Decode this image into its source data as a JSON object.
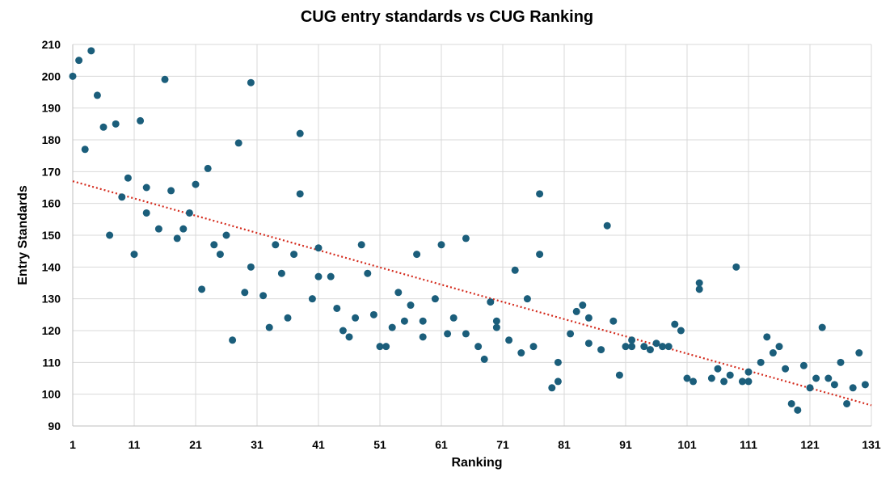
{
  "chart_data": {
    "type": "scatter",
    "title": "CUG entry standards vs CUG Ranking",
    "xlabel": "Ranking",
    "ylabel": "Entry Standards",
    "xlim": [
      1,
      131
    ],
    "ylim": [
      90,
      210
    ],
    "x_ticks": [
      1,
      11,
      21,
      31,
      41,
      51,
      61,
      71,
      81,
      91,
      101,
      111,
      121,
      131
    ],
    "y_ticks": [
      90,
      100,
      110,
      120,
      130,
      140,
      150,
      160,
      170,
      180,
      190,
      200,
      210
    ],
    "grid": true,
    "legend": "none",
    "marker_color": "#1b5e7b",
    "trendline": {
      "type": "linear",
      "style": "dotted",
      "color": "#d42a1c",
      "start": [
        1,
        167
      ],
      "end": [
        131,
        96.5
      ]
    },
    "points": [
      [
        1,
        200
      ],
      [
        2,
        205
      ],
      [
        3,
        177
      ],
      [
        4,
        208
      ],
      [
        5,
        194
      ],
      [
        6,
        184
      ],
      [
        7,
        150
      ],
      [
        8,
        185
      ],
      [
        9,
        162
      ],
      [
        10,
        168
      ],
      [
        11,
        144
      ],
      [
        12,
        186
      ],
      [
        13,
        165
      ],
      [
        13,
        157
      ],
      [
        15,
        152
      ],
      [
        16,
        199
      ],
      [
        17,
        164
      ],
      [
        18,
        149
      ],
      [
        19,
        152
      ],
      [
        20,
        157
      ],
      [
        21,
        166
      ],
      [
        22,
        133
      ],
      [
        23,
        171
      ],
      [
        24,
        147
      ],
      [
        25,
        144
      ],
      [
        26,
        150
      ],
      [
        27,
        117
      ],
      [
        28,
        179
      ],
      [
        29,
        132
      ],
      [
        30,
        198
      ],
      [
        30,
        140
      ],
      [
        32,
        131
      ],
      [
        33,
        121
      ],
      [
        34,
        147
      ],
      [
        35,
        138
      ],
      [
        36,
        124
      ],
      [
        37,
        144
      ],
      [
        38,
        182
      ],
      [
        38,
        163
      ],
      [
        40,
        130
      ],
      [
        41,
        146
      ],
      [
        41,
        137
      ],
      [
        43,
        137
      ],
      [
        44,
        127
      ],
      [
        45,
        120
      ],
      [
        46,
        118
      ],
      [
        47,
        124
      ],
      [
        48,
        147
      ],
      [
        49,
        138
      ],
      [
        50,
        125
      ],
      [
        51,
        115
      ],
      [
        52,
        115
      ],
      [
        53,
        121
      ],
      [
        54,
        132
      ],
      [
        55,
        123
      ],
      [
        56,
        128
      ],
      [
        57,
        144
      ],
      [
        58,
        123
      ],
      [
        58,
        118
      ],
      [
        60,
        130
      ],
      [
        61,
        147
      ],
      [
        62,
        119
      ],
      [
        63,
        124
      ],
      [
        65,
        149
      ],
      [
        65,
        119
      ],
      [
        67,
        115
      ],
      [
        68,
        111
      ],
      [
        69,
        129
      ],
      [
        70,
        123
      ],
      [
        70,
        121
      ],
      [
        72,
        117
      ],
      [
        73,
        139
      ],
      [
        74,
        113
      ],
      [
        75,
        130
      ],
      [
        76,
        115
      ],
      [
        77,
        163
      ],
      [
        77,
        144
      ],
      [
        79,
        102
      ],
      [
        80,
        110
      ],
      [
        80,
        104
      ],
      [
        82,
        119
      ],
      [
        83,
        126
      ],
      [
        84,
        128
      ],
      [
        85,
        124
      ],
      [
        85,
        116
      ],
      [
        87,
        114
      ],
      [
        88,
        153
      ],
      [
        89,
        123
      ],
      [
        90,
        106
      ],
      [
        91,
        115
      ],
      [
        92,
        115
      ],
      [
        92,
        117
      ],
      [
        94,
        115
      ],
      [
        95,
        114
      ],
      [
        96,
        116
      ],
      [
        97,
        115
      ],
      [
        98,
        115
      ],
      [
        99,
        122
      ],
      [
        100,
        120
      ],
      [
        101,
        105
      ],
      [
        102,
        104
      ],
      [
        103,
        135
      ],
      [
        103,
        133
      ],
      [
        105,
        105
      ],
      [
        106,
        108
      ],
      [
        107,
        104
      ],
      [
        108,
        106
      ],
      [
        109,
        140
      ],
      [
        110,
        104
      ],
      [
        111,
        107
      ],
      [
        111,
        104
      ],
      [
        113,
        110
      ],
      [
        114,
        118
      ],
      [
        115,
        113
      ],
      [
        116,
        115
      ],
      [
        117,
        108
      ],
      [
        118,
        97
      ],
      [
        119,
        95
      ],
      [
        120,
        109
      ],
      [
        121,
        102
      ],
      [
        122,
        105
      ],
      [
        123,
        121
      ],
      [
        124,
        105
      ],
      [
        125,
        103
      ],
      [
        126,
        110
      ],
      [
        127,
        97
      ],
      [
        128,
        102
      ],
      [
        129,
        113
      ],
      [
        130,
        103
      ]
    ]
  }
}
